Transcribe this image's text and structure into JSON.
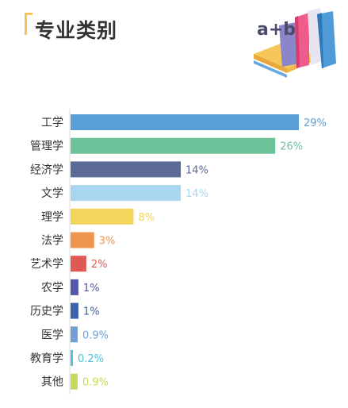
{
  "header": {
    "title": "专业类别",
    "icon": "books-illustration",
    "illustration_text": "a+b"
  },
  "chart_data": {
    "type": "bar",
    "orientation": "horizontal",
    "title": "专业类别",
    "categories": [
      "工学",
      "管理学",
      "经济学",
      "文学",
      "理学",
      "法学",
      "艺术学",
      "农学",
      "历史学",
      "医学",
      "教育学",
      "其他"
    ],
    "values": [
      29,
      26,
      14,
      14,
      8,
      3,
      2,
      1,
      1,
      0.9,
      0.2,
      0.9
    ],
    "value_labels": [
      "29%",
      "26%",
      "14%",
      "14%",
      "8%",
      "3%",
      "2%",
      "1%",
      "1%",
      "0.9%",
      "0.2%",
      "0.9%"
    ],
    "colors": [
      "#5b9fd8",
      "#6cc39a",
      "#5b6a96",
      "#a8d5ef",
      "#f2d55a",
      "#f0954e",
      "#e05a55",
      "#5558a8",
      "#3e62a9",
      "#6f9fd6",
      "#4fc0d6",
      "#c6d85f"
    ],
    "label_colors": [
      "#5b9fd8",
      "#6cc39a",
      "#5b6a96",
      "#a8d5ef",
      "#f2d55a",
      "#f0954e",
      "#e05a55",
      "#5558a8",
      "#3e62a9",
      "#6f9fd6",
      "#4fc0d6",
      "#c6d85f"
    ],
    "xlim": [
      0,
      29
    ],
    "grid": false,
    "legend": "none"
  }
}
